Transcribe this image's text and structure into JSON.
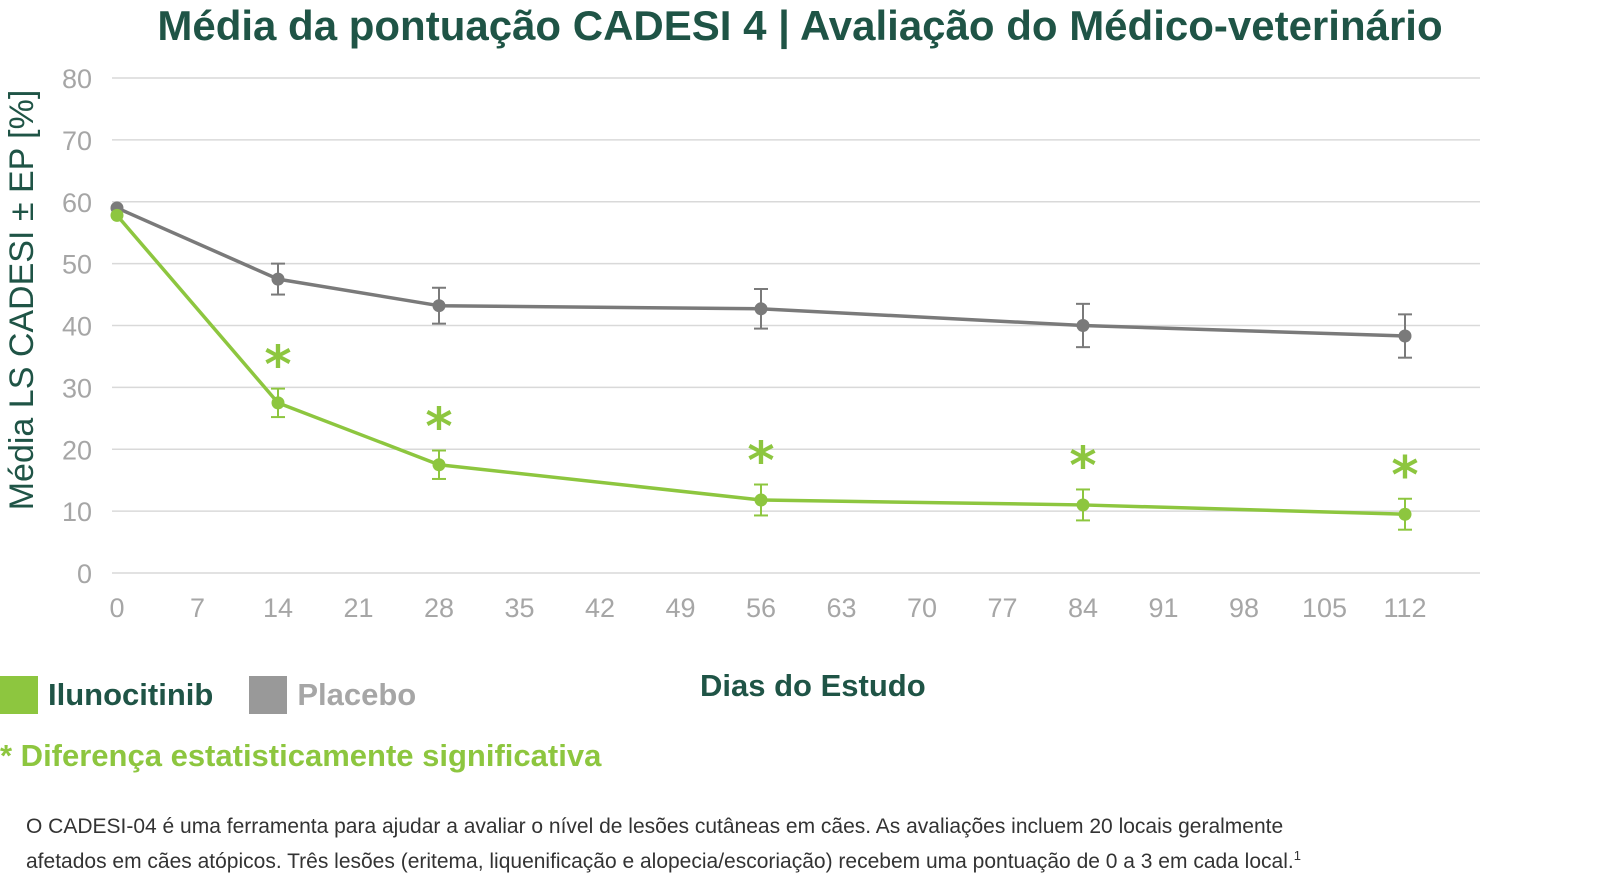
{
  "colors": {
    "title": "#1f5446",
    "series_green": "#8dc63f",
    "series_gray": "#7a7a7a",
    "grid": "#d9d9d9",
    "tick": "#a6a6a6"
  },
  "footnote_line1": "O CADESI-04 é uma ferramenta para ajudar a avaliar o nível de lesões cutâneas em cães. As avaliações incluem 20 locais geralmente",
  "footnote_line2": "afetados em cães atópicos. Três lesões (eritema, liquenificação e alopecia/escoriação) recebem uma pontuação de 0 a 3 em cada local.",
  "footnote_sup": "1",
  "chart_data": {
    "type": "line",
    "title": "Média da pontuação CADESI 4 | Avaliação do Médico-veterinário",
    "xlabel": "Dias do Estudo",
    "ylabel": "Média LS CADESI ±  EP [%]",
    "xlim": [
      0,
      112
    ],
    "ylim": [
      0,
      80
    ],
    "xticks": [
      0,
      7,
      14,
      21,
      28,
      35,
      42,
      49,
      56,
      63,
      70,
      77,
      84,
      91,
      98,
      105,
      112
    ],
    "yticks": [
      0,
      10,
      20,
      30,
      40,
      50,
      60,
      70,
      80
    ],
    "grid": "horizontal",
    "legend_position": "bottom-left",
    "series": [
      {
        "name": "Ilunocitinib",
        "color": "#8dc63f",
        "x": [
          0,
          14,
          28,
          56,
          84,
          112
        ],
        "y": [
          57.8,
          27.5,
          17.5,
          11.8,
          11.0,
          9.5
        ],
        "error": [
          null,
          2.3,
          2.3,
          2.5,
          2.5,
          2.5
        ],
        "significant": [
          false,
          true,
          true,
          true,
          true,
          true
        ]
      },
      {
        "name": "Placebo",
        "color": "#7a7a7a",
        "x": [
          0,
          14,
          28,
          56,
          84,
          112
        ],
        "y": [
          59.0,
          47.5,
          43.2,
          42.7,
          40.0,
          38.3
        ],
        "error": [
          null,
          2.5,
          2.9,
          3.2,
          3.5,
          3.5
        ]
      }
    ],
    "significance_note": "* Diferença estatisticamente significativa",
    "significance_marker": "*"
  }
}
